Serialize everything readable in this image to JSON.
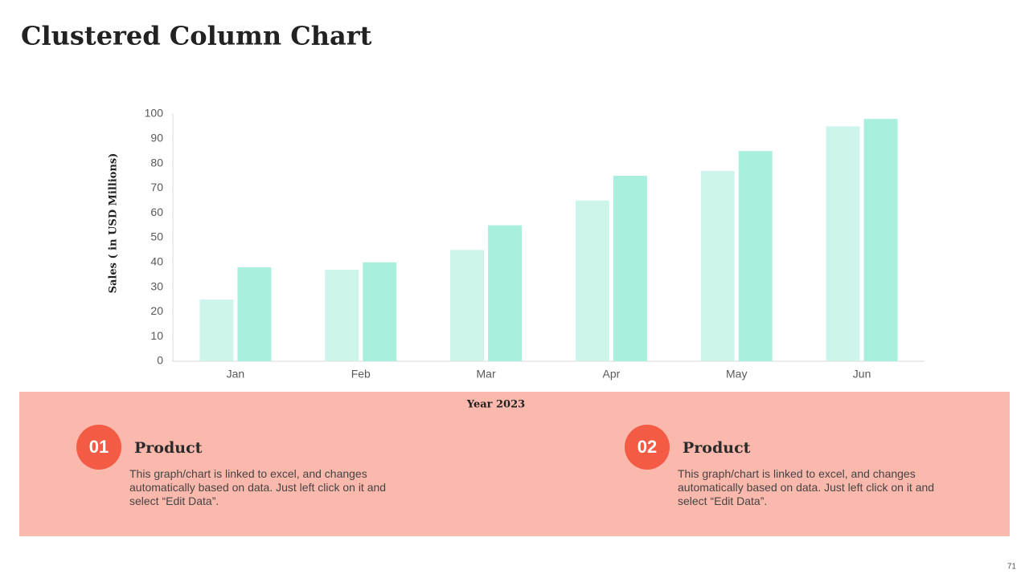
{
  "title": "Clustered Column Chart",
  "chart_data": {
    "type": "bar",
    "categories": [
      "Jan",
      "Feb",
      "Mar",
      "Apr",
      "May",
      "Jun"
    ],
    "series": [
      {
        "color": "#cdf5ec",
        "values": [
          25,
          37,
          45,
          65,
          77,
          95
        ]
      },
      {
        "color": "#a8efde",
        "values": [
          38,
          40,
          55,
          75,
          85,
          98
        ]
      }
    ],
    "ylim": [
      0,
      100
    ],
    "yticks": [
      0,
      10,
      20,
      30,
      40,
      50,
      60,
      70,
      80,
      90,
      100
    ],
    "grid": false,
    "ylabel": "Sales  ( in USD Millions)",
    "xlabel": "Year 2023"
  },
  "panels": [
    {
      "number": "01",
      "title": "Product",
      "text": "This graph/chart is linked to excel, and changes automatically based on data. Just left click on it and select “Edit Data”."
    },
    {
      "number": "02",
      "title": "Product",
      "text": "This graph/chart is linked to excel, and changes automatically based on data. Just left click on it and select “Edit Data”."
    }
  ],
  "page_number": "71"
}
